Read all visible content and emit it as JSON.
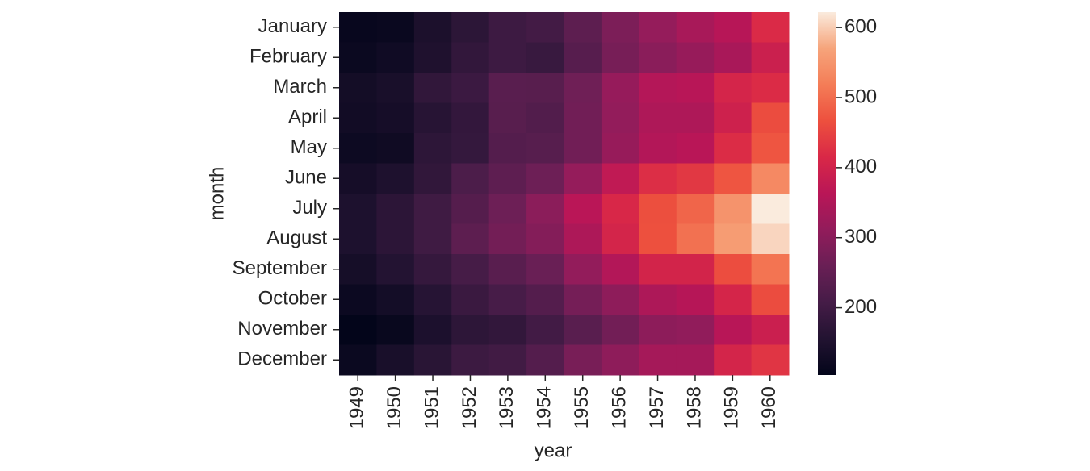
{
  "chart_data": {
    "type": "heatmap",
    "x_label": "year",
    "y_label": "month",
    "x": [
      "1949",
      "1950",
      "1951",
      "1952",
      "1953",
      "1954",
      "1955",
      "1956",
      "1957",
      "1958",
      "1959",
      "1960"
    ],
    "y": [
      "January",
      "February",
      "March",
      "April",
      "May",
      "June",
      "July",
      "August",
      "September",
      "October",
      "November",
      "December"
    ],
    "values": [
      [
        112,
        115,
        145,
        171,
        196,
        204,
        242,
        284,
        315,
        340,
        360,
        417
      ],
      [
        118,
        126,
        150,
        180,
        196,
        188,
        233,
        277,
        301,
        318,
        342,
        391
      ],
      [
        132,
        141,
        178,
        193,
        236,
        235,
        267,
        317,
        356,
        362,
        406,
        419
      ],
      [
        129,
        135,
        163,
        181,
        235,
        227,
        269,
        313,
        348,
        348,
        396,
        461
      ],
      [
        121,
        125,
        172,
        183,
        229,
        234,
        270,
        318,
        355,
        363,
        420,
        472
      ],
      [
        135,
        149,
        178,
        218,
        243,
        264,
        315,
        374,
        422,
        435,
        472,
        535
      ],
      [
        148,
        170,
        199,
        230,
        264,
        302,
        364,
        413,
        465,
        491,
        548,
        622
      ],
      [
        148,
        170,
        199,
        242,
        272,
        293,
        347,
        405,
        467,
        505,
        559,
        606
      ],
      [
        136,
        158,
        184,
        209,
        237,
        259,
        312,
        355,
        404,
        404,
        463,
        508
      ],
      [
        119,
        133,
        162,
        191,
        211,
        229,
        274,
        306,
        347,
        359,
        407,
        461
      ],
      [
        104,
        114,
        146,
        172,
        180,
        203,
        237,
        271,
        305,
        310,
        362,
        390
      ],
      [
        118,
        140,
        166,
        194,
        201,
        229,
        278,
        306,
        336,
        337,
        405,
        432
      ]
    ],
    "clim": [
      104,
      622
    ],
    "cticks": [
      200,
      300,
      400,
      500,
      600
    ],
    "colorscale": [
      "#03051a",
      "#221331",
      "#451c47",
      "#691f55",
      "#921c5b",
      "#b91657",
      "#d92847",
      "#ed503e",
      "#f47d57",
      "#f6a47b",
      "#faebdd"
    ]
  }
}
